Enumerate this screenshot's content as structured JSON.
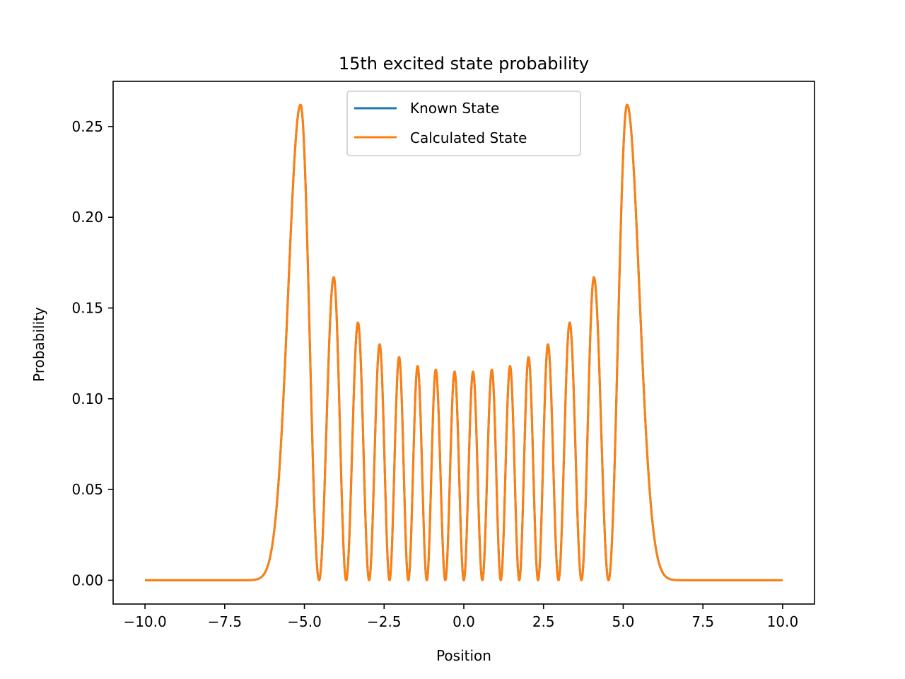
{
  "chart_data": {
    "type": "line",
    "title": "15th excited state probability",
    "xlabel": "Position",
    "ylabel": "Probability",
    "xlim": [
      -11.0,
      11.0
    ],
    "ylim": [
      -0.0131,
      0.2749
    ],
    "grid": false,
    "legend_position": "upper center",
    "x_ticks": [
      -10.0,
      -7.5,
      -5.0,
      -2.5,
      0.0,
      2.5,
      5.0,
      7.5,
      10.0
    ],
    "x_tick_labels": [
      "−10.0",
      "−7.5",
      "−5.0",
      "−2.5",
      "0.0",
      "2.5",
      "5.0",
      "7.5",
      "10.0"
    ],
    "y_ticks": [
      0.0,
      0.05,
      0.1,
      0.15,
      0.2,
      0.25
    ],
    "y_tick_labels": [
      "0.00",
      "0.05",
      "0.10",
      "0.15",
      "0.20",
      "0.25"
    ],
    "x_range": [
      -10.0,
      10.0
    ],
    "peaks": [
      {
        "x": -5.12,
        "y": 0.262
      },
      {
        "x": -4.08,
        "y": 0.167
      },
      {
        "x": -3.32,
        "y": 0.142
      },
      {
        "x": -2.64,
        "y": 0.13
      },
      {
        "x": -2.03,
        "y": 0.123
      },
      {
        "x": -1.45,
        "y": 0.118
      },
      {
        "x": -0.88,
        "y": 0.116
      },
      {
        "x": -0.29,
        "y": 0.115
      },
      {
        "x": 0.29,
        "y": 0.115
      },
      {
        "x": 0.88,
        "y": 0.116
      },
      {
        "x": 1.45,
        "y": 0.118
      },
      {
        "x": 2.03,
        "y": 0.123
      },
      {
        "x": 2.64,
        "y": 0.13
      },
      {
        "x": 3.32,
        "y": 0.142
      },
      {
        "x": 4.08,
        "y": 0.167
      },
      {
        "x": 5.12,
        "y": 0.262
      }
    ],
    "zeros": [
      -4.54,
      -3.69,
      -2.97,
      -2.33,
      -1.74,
      -1.16,
      -0.58,
      0.0,
      0.58,
      1.16,
      1.74,
      2.33,
      2.97,
      3.69,
      4.54
    ],
    "series": [
      {
        "name": "Known State",
        "color": "#1f77b4"
      },
      {
        "name": "Calculated State",
        "color": "#ff7f0e"
      }
    ]
  }
}
